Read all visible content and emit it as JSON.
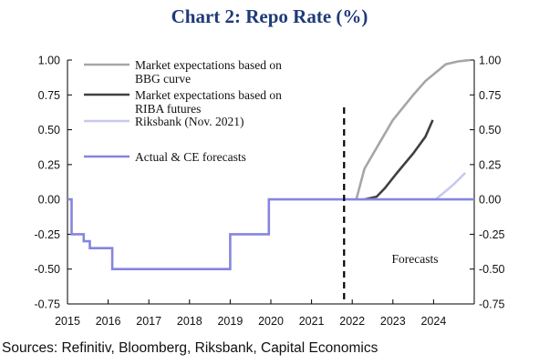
{
  "chart_data": {
    "type": "line",
    "title": "Chart 2: Repo Rate (%)",
    "source": "Sources: Refinitiv, Bloomberg, Riksbank, Capital Economics",
    "x_ticks": [
      "2015",
      "2016",
      "2017",
      "2018",
      "2019",
      "2020",
      "2021",
      "2022",
      "2023",
      "2024"
    ],
    "xlim": [
      2015,
      2025
    ],
    "ylim": [
      -0.75,
      1.0
    ],
    "y_ticks": [
      "1.00",
      "0.75",
      "0.50",
      "0.25",
      "0.00",
      "-0.25",
      "-0.50",
      "-0.75"
    ],
    "y_tick_values": [
      1.0,
      0.75,
      0.5,
      0.25,
      0.0,
      -0.25,
      -0.5,
      -0.75
    ],
    "dual_y_axis": true,
    "grid": false,
    "legend_position": "top-left",
    "forecast_start": 2021.8,
    "annotation": "Forecasts",
    "colors": {
      "title": "#1f3a78",
      "bbg": "#a6a6a6",
      "riba": "#404040",
      "riksbank": "#c8c8f0",
      "actual": "#8585e0"
    },
    "series": [
      {
        "name": "Market expectations based on BBG curve",
        "legend_lines": [
          "Market expectations based on",
          "BBG curve"
        ],
        "color_key": "bbg",
        "x": [
          2022.1,
          2022.3,
          2022.7,
          2023.0,
          2023.5,
          2023.8,
          2024.3,
          2024.6,
          2024.9
        ],
        "y": [
          0.0,
          0.22,
          0.42,
          0.57,
          0.75,
          0.85,
          0.97,
          0.99,
          1.0
        ]
      },
      {
        "name": "Market expectations based on RIBA futures",
        "legend_lines": [
          "Market expectations based on",
          "RIBA futures"
        ],
        "color_key": "riba",
        "x": [
          2022.3,
          2022.6,
          2022.8,
          2023.1,
          2023.5,
          2023.8,
          2023.98
        ],
        "y": [
          0.0,
          0.02,
          0.08,
          0.19,
          0.33,
          0.45,
          0.57
        ]
      },
      {
        "name": "Riksbank (Nov. 2021)",
        "legend_lines": [
          "Riksbank (Nov. 2021)"
        ],
        "color_key": "riksbank",
        "x": [
          2024.05,
          2024.3,
          2024.5,
          2024.78
        ],
        "y": [
          0.0,
          0.06,
          0.11,
          0.19
        ]
      },
      {
        "name": "Actual & CE forecasts",
        "legend_lines": [
          "Actual & CE forecasts"
        ],
        "color_key": "actual",
        "x": [
          2015.0,
          2015.1,
          2015.1,
          2015.4,
          2015.4,
          2015.55,
          2015.55,
          2016.1,
          2016.1,
          2019.0,
          2019.0,
          2019.95,
          2019.95,
          2025.0
        ],
        "y": [
          0.0,
          0.0,
          -0.25,
          -0.25,
          -0.3,
          -0.3,
          -0.35,
          -0.35,
          -0.5,
          -0.5,
          -0.25,
          -0.25,
          0.0,
          0.0
        ]
      }
    ]
  }
}
